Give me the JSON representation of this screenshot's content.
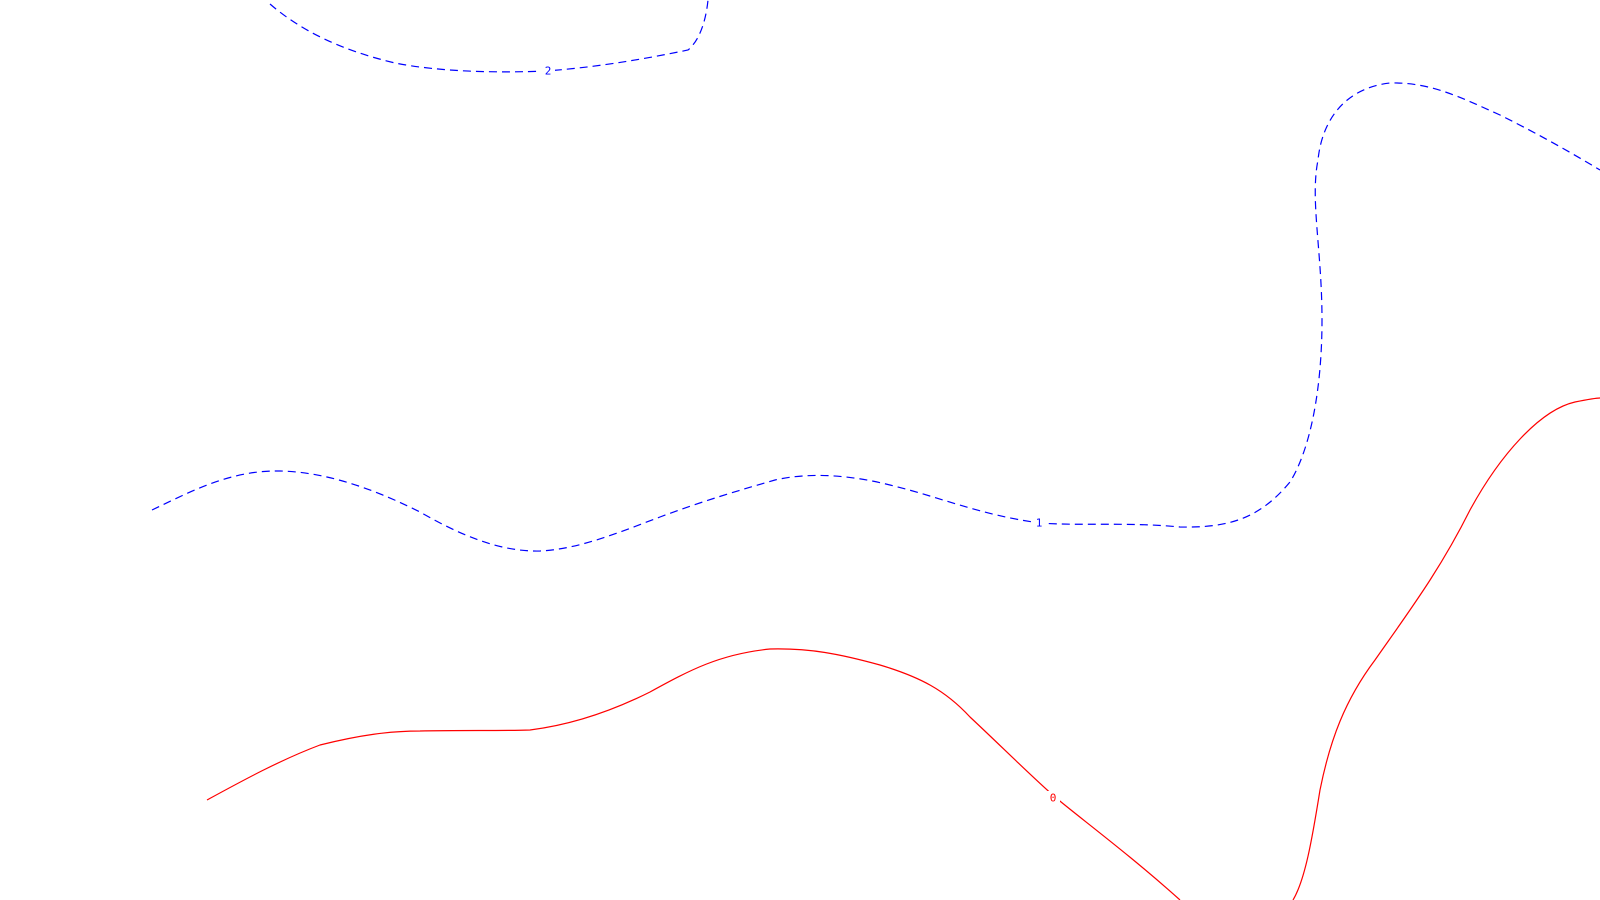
{
  "chart_data": {
    "type": "contour",
    "title": "",
    "xlabel": "",
    "ylabel": "",
    "grid": false,
    "legend": "none",
    "series": [
      {
        "name": "contour-level-2",
        "level_label": "2",
        "color": "#0000ff",
        "style": "dashed"
      },
      {
        "name": "contour-level-1",
        "level_label": "1",
        "color": "#0000ff",
        "style": "dashed"
      },
      {
        "name": "contour-level-0-left",
        "level_label": "0",
        "color": "#ff0000",
        "style": "solid"
      },
      {
        "name": "contour-level-0-right",
        "level_label": "",
        "color": "#ff0000",
        "style": "solid"
      }
    ]
  }
}
